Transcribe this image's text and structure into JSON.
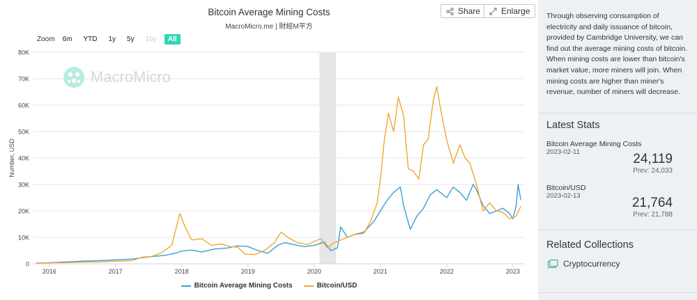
{
  "header": {
    "title": "Bitcoin Average Mining Costs",
    "subtitle": "MacroMicro.me | 財經M平方",
    "share_label": "Share",
    "enlarge_label": "Enlarge",
    "watermark": "MacroMicro"
  },
  "zoom": {
    "label": "Zoom",
    "options": [
      "6m",
      "YTD",
      "1y",
      "5y",
      "10y",
      "All"
    ],
    "active": "All",
    "disabled": "10y"
  },
  "legend": [
    {
      "name": "Bitcoin Average Mining Costs",
      "color": "#3a9fd6"
    },
    {
      "name": "Bitcoin/USD",
      "color": "#f0a72e"
    }
  ],
  "chart_data": {
    "type": "line",
    "title": "Bitcoin Average Mining Costs",
    "subtitle": "MacroMicro.me | 財經M平方",
    "ylabel": "Number, USD",
    "xlabel": "",
    "ylim": [
      0,
      80000
    ],
    "xlim": [
      2015.75,
      2023.17
    ],
    "yticks": [
      0,
      10000,
      20000,
      30000,
      40000,
      50000,
      60000,
      70000,
      80000
    ],
    "ytick_labels": [
      "0",
      "10K",
      "20K",
      "30K",
      "40K",
      "50K",
      "60K",
      "70K",
      "80K"
    ],
    "xticks": [
      2016,
      2017,
      2018,
      2019,
      2020,
      2021,
      2022,
      2023
    ],
    "xtick_labels": [
      "2016",
      "2017",
      "2018",
      "2019",
      "2020",
      "2021",
      "2022",
      "2023"
    ],
    "shaded_band": [
      2020.08,
      2020.33
    ],
    "legend_position": "bottom",
    "series": [
      {
        "name": "Bitcoin Average Mining Costs",
        "color": "#3a9fd6",
        "x": [
          2015.8,
          2016.0,
          2016.25,
          2016.5,
          2016.75,
          2017.0,
          2017.25,
          2017.5,
          2017.75,
          2017.9,
          2018.0,
          2018.15,
          2018.3,
          2018.5,
          2018.7,
          2018.85,
          2019.0,
          2019.15,
          2019.3,
          2019.45,
          2019.55,
          2019.7,
          2019.85,
          2020.0,
          2020.15,
          2020.25,
          2020.35,
          2020.4,
          2020.5,
          2020.6,
          2020.75,
          2020.9,
          2021.0,
          2021.1,
          2021.2,
          2021.3,
          2021.35,
          2021.45,
          2021.55,
          2021.65,
          2021.75,
          2021.85,
          2022.0,
          2022.1,
          2022.2,
          2022.3,
          2022.4,
          2022.45,
          2022.55,
          2022.65,
          2022.75,
          2022.85,
          2022.95,
          2023.0,
          2023.05,
          2023.08,
          2023.12
        ],
        "values": [
          300,
          400,
          700,
          1000,
          1200,
          1500,
          1800,
          2600,
          3200,
          4000,
          4800,
          5200,
          4500,
          5600,
          6000,
          6800,
          6500,
          5000,
          4000,
          7000,
          8000,
          7200,
          6500,
          7000,
          8200,
          5000,
          6000,
          14000,
          10000,
          11000,
          12000,
          16000,
          20000,
          24000,
          27000,
          29000,
          22000,
          13000,
          18000,
          21000,
          26000,
          28000,
          25000,
          29000,
          27000,
          24000,
          30000,
          28000,
          22000,
          19000,
          20000,
          21000,
          19000,
          17000,
          22000,
          30000,
          24119
        ]
      },
      {
        "name": "Bitcoin/USD",
        "color": "#f0a72e",
        "x": [
          2015.8,
          2016.0,
          2016.25,
          2016.5,
          2016.75,
          2017.0,
          2017.25,
          2017.4,
          2017.55,
          2017.7,
          2017.85,
          2017.97,
          2018.05,
          2018.15,
          2018.3,
          2018.45,
          2018.6,
          2018.75,
          2018.85,
          2018.95,
          2019.1,
          2019.25,
          2019.4,
          2019.5,
          2019.6,
          2019.75,
          2019.9,
          2020.0,
          2020.1,
          2020.2,
          2020.3,
          2020.45,
          2020.6,
          2020.75,
          2020.85,
          2020.95,
          2021.0,
          2021.05,
          2021.12,
          2021.2,
          2021.27,
          2021.35,
          2021.42,
          2021.5,
          2021.58,
          2021.65,
          2021.72,
          2021.8,
          2021.85,
          2021.92,
          2022.0,
          2022.1,
          2022.2,
          2022.28,
          2022.35,
          2022.45,
          2022.55,
          2022.65,
          2022.75,
          2022.85,
          2022.95,
          2023.05,
          2023.12
        ],
        "values": [
          300,
          400,
          450,
          650,
          700,
          1000,
          1200,
          2500,
          2800,
          4300,
          7000,
          19000,
          14000,
          9000,
          9500,
          7000,
          7500,
          6400,
          6300,
          3700,
          3500,
          5000,
          8000,
          12000,
          10000,
          8000,
          7300,
          8500,
          9500,
          6000,
          8000,
          9500,
          11000,
          11500,
          16000,
          23000,
          32000,
          45000,
          57000,
          50000,
          63000,
          56000,
          36000,
          35000,
          32000,
          45000,
          47000,
          62000,
          67000,
          57000,
          47000,
          38000,
          45000,
          40000,
          38000,
          30000,
          20000,
          23000,
          20000,
          19500,
          17000,
          18000,
          21764
        ]
      }
    ]
  },
  "sidebar": {
    "description": "Through observing consumption of electricity and daily issuance of bitcoin, provided by Cambridge University, we can find out the average mining costs of bitcoin. When mining costs are lower than bitcoin's market value, more miners will join. When mining costs are higher than miner's revenue, number of miners will decrease.",
    "latest_stats_title": "Latest Stats",
    "stats": [
      {
        "label": "Bitcoin Average Mining Costs",
        "date": "2023-02-11",
        "value": "24,119",
        "prev": "Prev: 24,033"
      },
      {
        "label": "Bitcoin/USD",
        "date": "2023-02-13",
        "value": "21,764",
        "prev": "Prev: 21,788"
      }
    ],
    "related_title": "Related Collections",
    "collection": "Cryptocurrency"
  }
}
